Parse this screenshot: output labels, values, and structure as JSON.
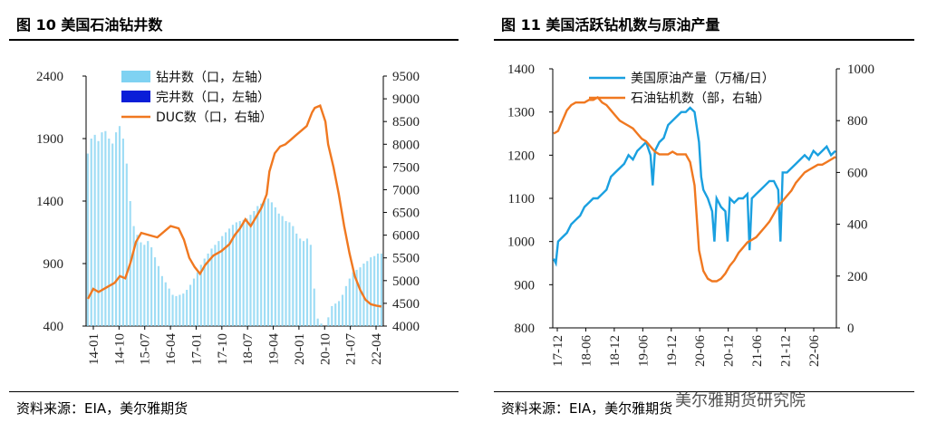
{
  "figure10": {
    "title": "图 10   美国石油钻井数",
    "source": "资料来源：EIA，美尔雅期货",
    "chart_data": {
      "type": "bar",
      "left_axis": {
        "ticks": [
          400,
          900,
          1400,
          1900,
          2400
        ],
        "range": [
          400,
          2400
        ]
      },
      "right_axis": {
        "ticks": [
          4000,
          4500,
          5000,
          5500,
          6000,
          6500,
          7000,
          7500,
          8000,
          8500,
          9000,
          9500
        ],
        "range": [
          4000,
          9500
        ]
      },
      "x_ticks": [
        "14-01",
        "14-10",
        "15-07",
        "16-04",
        "17-01",
        "17-10",
        "18-07",
        "19-04",
        "20-01",
        "20-10",
        "21-07",
        "22-04"
      ],
      "series": [
        {
          "name": "钻井数（口，左轴）",
          "color": "#35C0F0",
          "axis": "left",
          "values": [
            1780,
            1900,
            1930,
            1880,
            1950,
            1960,
            1900,
            1860,
            1950,
            2000,
            1900,
            1700,
            1400,
            1200,
            1130,
            1070,
            1050,
            1080,
            1030,
            950,
            880,
            800,
            750,
            700,
            650,
            640,
            650,
            660,
            690,
            730,
            780,
            830,
            890,
            940,
            980,
            1020,
            1050,
            1080,
            1120,
            1150,
            1180,
            1210,
            1230,
            1240,
            1250,
            1260,
            1290,
            1320,
            1360,
            1380,
            1400,
            1420,
            1390,
            1350,
            1300,
            1280,
            1240,
            1230,
            1200,
            1140,
            1100,
            1080,
            1100,
            1050,
            700,
            460,
            420,
            400,
            470,
            560,
            580,
            600,
            650,
            720,
            780,
            830,
            850,
            870,
            900,
            920,
            950,
            960,
            980,
            980
          ]
        },
        {
          "name": "完井数（口，左轴）",
          "color": "#0000CC",
          "axis": "left"
        },
        {
          "name": "DUC数（口，右轴）",
          "color": "#F07820",
          "axis": "right",
          "points": [
            [
              0,
              4600
            ],
            [
              2,
              4820
            ],
            [
              4,
              4750
            ],
            [
              7,
              4850
            ],
            [
              10,
              4950
            ],
            [
              12,
              5100
            ],
            [
              14,
              5050
            ],
            [
              16,
              5400
            ],
            [
              18,
              5850
            ],
            [
              20,
              6050
            ],
            [
              23,
              6000
            ],
            [
              26,
              5950
            ],
            [
              29,
              6100
            ],
            [
              31,
              6200
            ],
            [
              34,
              6150
            ],
            [
              36,
              5900
            ],
            [
              38,
              5500
            ],
            [
              40,
              5300
            ],
            [
              42,
              5150
            ],
            [
              44,
              5350
            ],
            [
              47,
              5550
            ],
            [
              50,
              5650
            ],
            [
              53,
              5800
            ],
            [
              55,
              6000
            ],
            [
              57,
              6150
            ],
            [
              59,
              6350
            ],
            [
              61,
              6200
            ],
            [
              63,
              6400
            ],
            [
              65,
              6600
            ],
            [
              67,
              6900
            ],
            [
              68,
              7400
            ],
            [
              70,
              7800
            ],
            [
              72,
              7950
            ],
            [
              74,
              8000
            ],
            [
              76,
              8100
            ],
            [
              78,
              8200
            ],
            [
              80,
              8300
            ],
            [
              82,
              8400
            ],
            [
              84,
              8700
            ],
            [
              85,
              8800
            ],
            [
              87,
              8850
            ],
            [
              89,
              8500
            ],
            [
              90,
              8000
            ],
            [
              92,
              7500
            ],
            [
              94,
              6900
            ],
            [
              96,
              6200
            ],
            [
              98,
              5600
            ],
            [
              100,
              5100
            ],
            [
              102,
              4800
            ],
            [
              104,
              4580
            ],
            [
              106,
              4480
            ],
            [
              108,
              4450
            ],
            [
              110,
              4430
            ]
          ],
          "x_max": 110
        }
      ]
    }
  },
  "figure11": {
    "title": "图 11   美国活跃钻机数与原油产量",
    "source": "资料来源：EIA，美尔雅期货",
    "watermark": "美尔雅期货研究院",
    "chart_data": {
      "type": "line",
      "left_axis": {
        "ticks": [
          800,
          900,
          1000,
          1100,
          1200,
          1300,
          1400
        ],
        "range": [
          800,
          1400
        ]
      },
      "right_axis": {
        "ticks": [
          0,
          200,
          400,
          600,
          800,
          1000
        ],
        "range": [
          0,
          1000
        ]
      },
      "x_ticks": [
        "17-12",
        "18-06",
        "18-12",
        "19-06",
        "19-12",
        "20-06",
        "20-12",
        "21-06",
        "21-12",
        "22-06"
      ],
      "series": [
        {
          "name": "美国原油产量（万桶/日）",
          "color": "#1AA0E0",
          "axis": "left",
          "points": [
            [
              0,
              960
            ],
            [
              0.5,
              950
            ],
            [
              1,
              1000
            ],
            [
              2,
              1010
            ],
            [
              3,
              1020
            ],
            [
              4,
              1040
            ],
            [
              5,
              1050
            ],
            [
              6,
              1060
            ],
            [
              7,
              1080
            ],
            [
              8,
              1090
            ],
            [
              9,
              1100
            ],
            [
              10,
              1100
            ],
            [
              11,
              1110
            ],
            [
              12,
              1120
            ],
            [
              13,
              1150
            ],
            [
              14,
              1160
            ],
            [
              15,
              1170
            ],
            [
              16,
              1180
            ],
            [
              17,
              1200
            ],
            [
              18,
              1190
            ],
            [
              19,
              1210
            ],
            [
              20,
              1220
            ],
            [
              21,
              1230
            ],
            [
              22,
              1200
            ],
            [
              22.5,
              1130
            ],
            [
              23,
              1210
            ],
            [
              24,
              1230
            ],
            [
              25,
              1240
            ],
            [
              26,
              1270
            ],
            [
              27,
              1280
            ],
            [
              28,
              1290
            ],
            [
              29,
              1300
            ],
            [
              30,
              1300
            ],
            [
              31,
              1310
            ],
            [
              32,
              1300
            ],
            [
              33,
              1230
            ],
            [
              33.5,
              1150
            ],
            [
              34,
              1120
            ],
            [
              35,
              1100
            ],
            [
              36,
              1070
            ],
            [
              36.5,
              1000
            ],
            [
              37,
              1100
            ],
            [
              38,
              1080
            ],
            [
              39,
              1070
            ],
            [
              39.5,
              1000
            ],
            [
              40,
              1100
            ],
            [
              41,
              1090
            ],
            [
              42,
              1100
            ],
            [
              43,
              1100
            ],
            [
              44,
              1110
            ],
            [
              44.5,
              980
            ],
            [
              45,
              1100
            ],
            [
              46,
              1110
            ],
            [
              47,
              1120
            ],
            [
              48,
              1130
            ],
            [
              49,
              1140
            ],
            [
              50,
              1140
            ],
            [
              51,
              1120
            ],
            [
              51.5,
              1000
            ],
            [
              52,
              1160
            ],
            [
              53,
              1160
            ],
            [
              54,
              1170
            ],
            [
              55,
              1180
            ],
            [
              56,
              1190
            ],
            [
              57,
              1200
            ],
            [
              58,
              1190
            ],
            [
              59,
              1210
            ],
            [
              60,
              1200
            ],
            [
              61,
              1210
            ],
            [
              62,
              1220
            ],
            [
              63,
              1200
            ],
            [
              64,
              1210
            ]
          ],
          "x_max": 64
        },
        {
          "name": "石油钻机数（部，右轴）",
          "color": "#F07820",
          "axis": "right",
          "points": [
            [
              0,
              750
            ],
            [
              1,
              760
            ],
            [
              2,
              800
            ],
            [
              3,
              840
            ],
            [
              4,
              860
            ],
            [
              5,
              870
            ],
            [
              6,
              870
            ],
            [
              7,
              870
            ],
            [
              8,
              880
            ],
            [
              9,
              880
            ],
            [
              10,
              890
            ],
            [
              11,
              870
            ],
            [
              12,
              860
            ],
            [
              13,
              840
            ],
            [
              14,
              820
            ],
            [
              15,
              800
            ],
            [
              16,
              790
            ],
            [
              17,
              780
            ],
            [
              18,
              770
            ],
            [
              19,
              750
            ],
            [
              20,
              730
            ],
            [
              21,
              720
            ],
            [
              22,
              700
            ],
            [
              23,
              680
            ],
            [
              24,
              670
            ],
            [
              25,
              670
            ],
            [
              26,
              670
            ],
            [
              27,
              680
            ],
            [
              28,
              670
            ],
            [
              29,
              670
            ],
            [
              30,
              670
            ],
            [
              31,
              640
            ],
            [
              32,
              550
            ],
            [
              33,
              300
            ],
            [
              34,
              220
            ],
            [
              35,
              190
            ],
            [
              36,
              180
            ],
            [
              37,
              180
            ],
            [
              38,
              190
            ],
            [
              39,
              210
            ],
            [
              40,
              240
            ],
            [
              41,
              260
            ],
            [
              42,
              290
            ],
            [
              43,
              310
            ],
            [
              44,
              330
            ],
            [
              45,
              340
            ],
            [
              46,
              350
            ],
            [
              47,
              370
            ],
            [
              48,
              390
            ],
            [
              49,
              410
            ],
            [
              50,
              440
            ],
            [
              51,
              470
            ],
            [
              52,
              490
            ],
            [
              53,
              510
            ],
            [
              54,
              530
            ],
            [
              55,
              560
            ],
            [
              56,
              580
            ],
            [
              57,
              600
            ],
            [
              58,
              610
            ],
            [
              59,
              620
            ],
            [
              60,
              630
            ],
            [
              61,
              630
            ],
            [
              62,
              640
            ],
            [
              63,
              650
            ],
            [
              64,
              660
            ]
          ],
          "x_max": 64
        }
      ]
    }
  }
}
